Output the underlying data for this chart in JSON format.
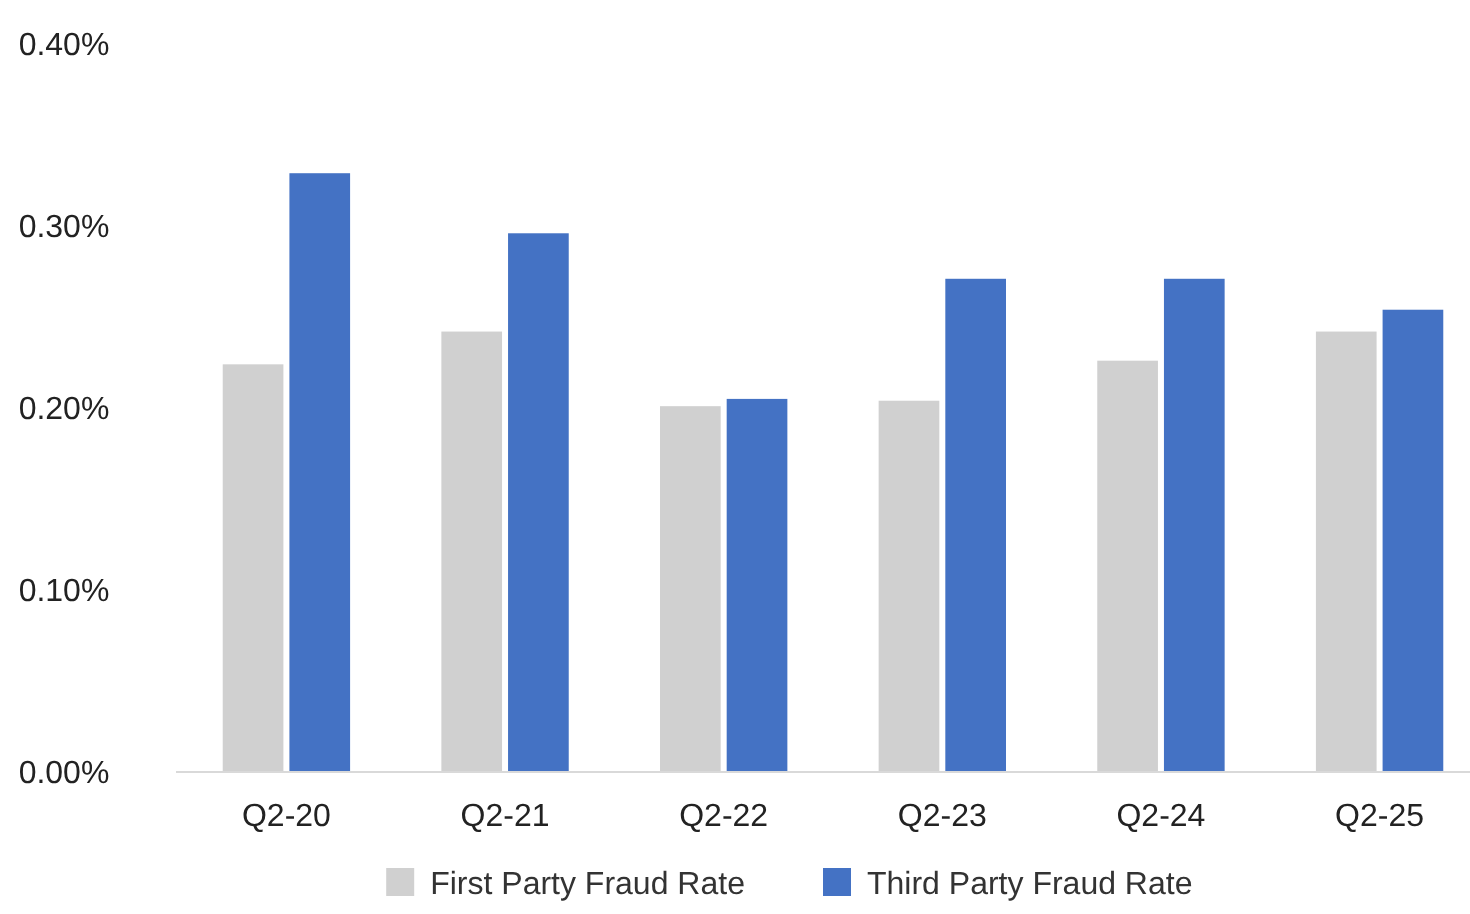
{
  "chart_data": {
    "type": "bar",
    "categories": [
      "Q2-20",
      "Q2-21",
      "Q2-22",
      "Q2-23",
      "Q2-24",
      "Q2-25"
    ],
    "series": [
      {
        "name": "First Party Fraud Rate",
        "color": "#d0d0d0",
        "values": [
          0.224,
          0.242,
          0.201,
          0.204,
          0.226,
          0.242
        ]
      },
      {
        "name": "Third Party Fraud Rate",
        "color": "#4472c4",
        "values": [
          0.329,
          0.296,
          0.205,
          0.271,
          0.271,
          0.254
        ]
      }
    ],
    "ylim": [
      0,
      0.4
    ],
    "yticks": [
      {
        "value": 0,
        "label": "0.00%"
      },
      {
        "value": 0.1,
        "label": "0.10%"
      },
      {
        "value": 0.2,
        "label": "0.20%"
      },
      {
        "value": 0.3,
        "label": "0.30%"
      },
      {
        "value": 0.4,
        "label": "0.40%"
      }
    ],
    "grid": false,
    "legend": "bottom"
  }
}
